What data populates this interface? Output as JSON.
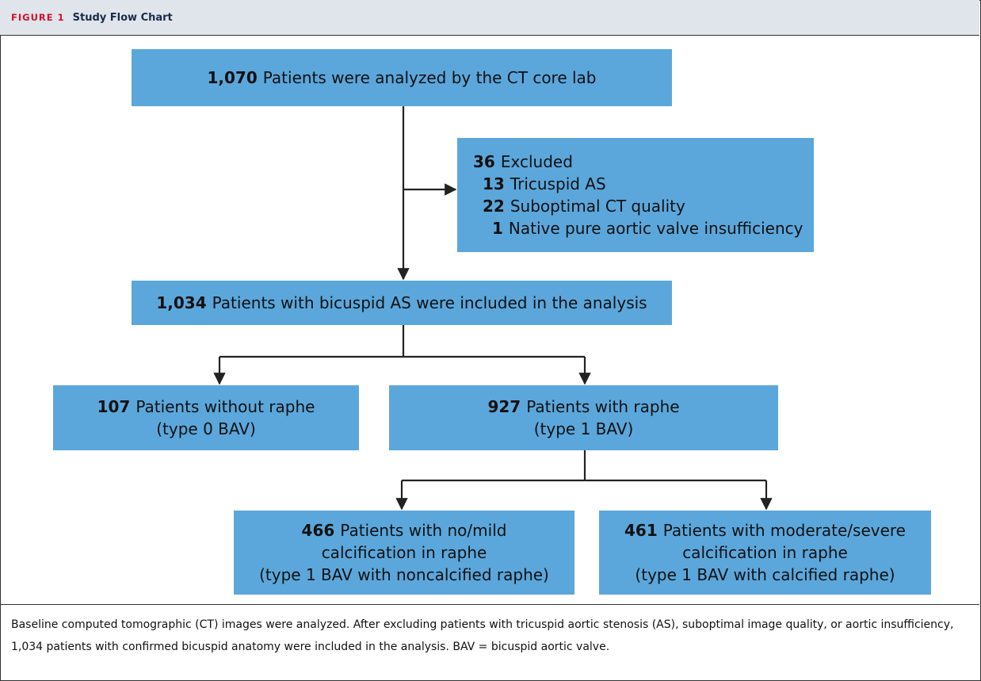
{
  "header": {
    "label": "FIGURE 1",
    "title": "Study Flow Chart"
  },
  "nodes": [
    {
      "lines": [
        {
          "count": "1,070",
          "text": "Patients were analyzed by the CT core lab"
        }
      ]
    },
    {
      "lines": [
        {
          "count": "36",
          "text": "Excluded"
        },
        {
          "count": "13",
          "text": "Tricuspid AS"
        },
        {
          "count": "22",
          "text": "Suboptimal CT quality"
        },
        {
          "count": "1",
          "text": "Native pure aortic valve insufficiency"
        }
      ]
    },
    {
      "lines": [
        {
          "count": "1,034",
          "text": "Patients with bicuspid AS were included in the analysis"
        }
      ]
    },
    {
      "lines": [
        {
          "count": "107",
          "text": "Patients without raphe"
        },
        {
          "text": "(type 0 BAV)"
        }
      ]
    },
    {
      "lines": [
        {
          "count": "927",
          "text": "Patients with raphe"
        },
        {
          "text": "(type 1 BAV)"
        }
      ]
    },
    {
      "lines": [
        {
          "count": "466",
          "text": "Patients with no/mild"
        },
        {
          "text": "calcification in raphe"
        },
        {
          "text": "(type 1 BAV with noncalcified raphe)"
        }
      ]
    },
    {
      "lines": [
        {
          "count": "461",
          "text": "Patients with moderate/severe"
        },
        {
          "text": "calcification in raphe"
        },
        {
          "text": "(type 1 BAV with calcified raphe)"
        }
      ]
    }
  ],
  "caption": "Baseline computed tomographic (CT) images were analyzed. After excluding patients with tricuspid aortic stenosis (AS), suboptimal image quality, or aortic insufficiency, 1,034 patients with confirmed bicuspid anatomy were included in the analysis. BAV = bicuspid aortic valve."
}
